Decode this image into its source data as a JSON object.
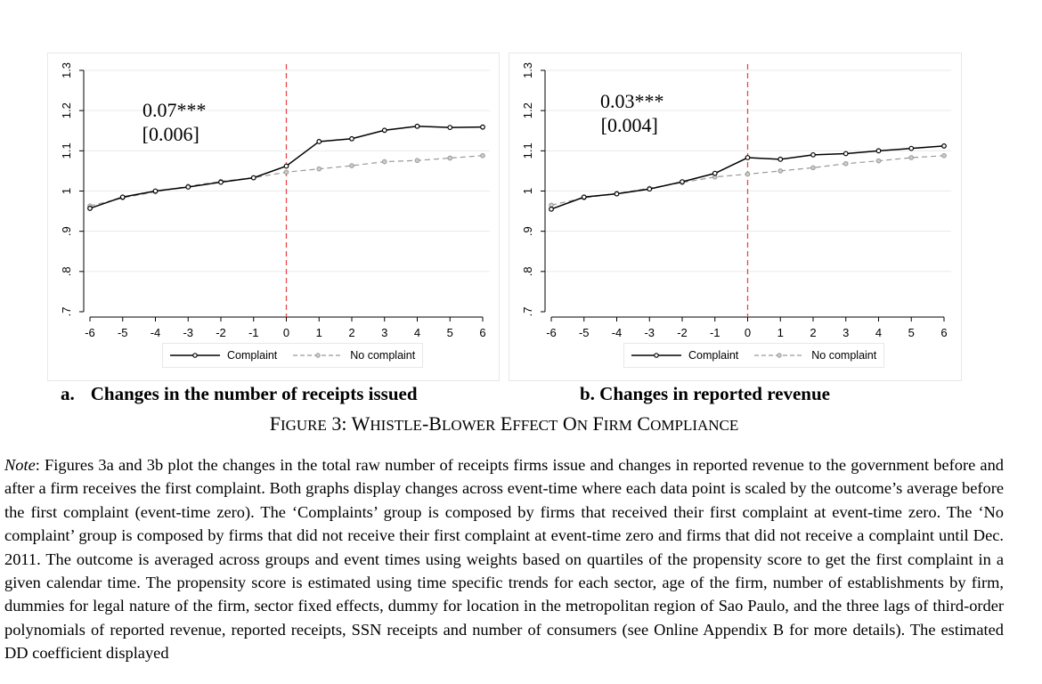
{
  "chart_data": [
    {
      "type": "line",
      "panel": "a",
      "x": [
        -6,
        -5,
        -4,
        -3,
        -2,
        -1,
        0,
        1,
        2,
        3,
        4,
        5,
        6
      ],
      "xticks": [
        "-6",
        "-5",
        "-4",
        "-3",
        "-2",
        "-1",
        "0",
        "1",
        "2",
        "3",
        "4",
        "5",
        "6"
      ],
      "yticks": [
        ".7",
        ".8",
        ".9",
        "1",
        "1.1",
        "1.2",
        "1.3"
      ],
      "ytick_values": [
        0.7,
        0.8,
        0.9,
        1.0,
        1.1,
        1.2,
        1.3
      ],
      "ylim": [
        0.7,
        1.3
      ],
      "xlim": [
        -6,
        6
      ],
      "event_line_x": 0,
      "series": [
        {
          "name": "Complaint",
          "color": "#000000",
          "style": "solid",
          "values": [
            0.957,
            0.985,
            1.0,
            1.01,
            1.022,
            1.033,
            1.062,
            1.123,
            1.13,
            1.151,
            1.161,
            1.158,
            1.159
          ]
        },
        {
          "name": "No complaint",
          "color": "#999999",
          "style": "dashed",
          "values": [
            0.963,
            0.983,
            0.998,
            1.012,
            1.024,
            1.033,
            1.047,
            1.055,
            1.063,
            1.073,
            1.076,
            1.082,
            1.088
          ]
        }
      ],
      "annotation": {
        "coef": "0.07***",
        "se": "[0.006]"
      },
      "caption_label": "a.",
      "caption": "Changes in the number of receipts issued",
      "grid": true,
      "legend_position": "bottom"
    },
    {
      "type": "line",
      "panel": "b",
      "x": [
        -6,
        -5,
        -4,
        -3,
        -2,
        -1,
        0,
        1,
        2,
        3,
        4,
        5,
        6
      ],
      "xticks": [
        "-6",
        "-5",
        "-4",
        "-3",
        "-2",
        "-1",
        "0",
        "1",
        "2",
        "3",
        "4",
        "5",
        "6"
      ],
      "yticks": [
        ".7",
        ".8",
        ".9",
        "1",
        "1.1",
        "1.2",
        "1.3"
      ],
      "ytick_values": [
        0.7,
        0.8,
        0.9,
        1.0,
        1.1,
        1.2,
        1.3
      ],
      "ylim": [
        0.7,
        1.3
      ],
      "xlim": [
        -6,
        6
      ],
      "event_line_x": 0,
      "series": [
        {
          "name": "Complaint",
          "color": "#000000",
          "style": "solid",
          "values": [
            0.955,
            0.985,
            0.993,
            1.005,
            1.023,
            1.044,
            1.083,
            1.079,
            1.09,
            1.093,
            1.1,
            1.106,
            1.112
          ]
        },
        {
          "name": "No complaint",
          "color": "#999999",
          "style": "dashed",
          "values": [
            0.965,
            0.983,
            0.994,
            1.007,
            1.021,
            1.035,
            1.042,
            1.05,
            1.058,
            1.068,
            1.075,
            1.083,
            1.088
          ]
        }
      ],
      "annotation": {
        "coef": "0.03***",
        "se": "[0.004]"
      },
      "caption": "b. Changes in reported revenue",
      "grid": true,
      "legend_position": "bottom"
    }
  ],
  "figure_title": {
    "f": "F",
    "igure": "IGURE",
    "num": " 3: ",
    "w": "W",
    "histle": "HISTLE",
    "dash": "-",
    "b": "B",
    "lower": "LOWER",
    "sp1": " ",
    "e": "E",
    "ffect": "FFECT",
    "sp2": " ",
    "on_o": "O",
    "on_n": "N",
    "sp3": " ",
    "f2": "F",
    "irm": "IRM",
    "sp4": " ",
    "c": "C",
    "ompliance": "OMPLIANCE"
  },
  "note": {
    "label": "Note",
    "text": ": Figures 3a and 3b plot the changes in the total raw number of receipts firms issue and changes in reported revenue to the government before and after a firm receives the first complaint. Both graphs display changes across event-time where each data point is scaled by the outcome’s average before the first complaint (event-time zero). The ‘Complaints’ group is composed by firms that received their first complaint at event-time zero. The ‘No complaint’ group is composed by firms that did not receive their first complaint at event-time zero and firms that did not receive a complaint until Dec. 2011. The outcome is averaged across groups and event times using weights based on quartiles of the propensity score to get the first complaint in a given calendar time.  The propensity score is estimated using time specific trends for each sector, age of the firm, number of establishments by firm, dummies for legal nature of the firm, sector fixed effects, dummy for location in the metropolitan region of Sao Paulo, and the three lags of third-order polynomials of reported revenue, reported receipts, SSN receipts and number of consumers (see Online Appendix B for more details). The estimated DD coefficient displayed"
  }
}
